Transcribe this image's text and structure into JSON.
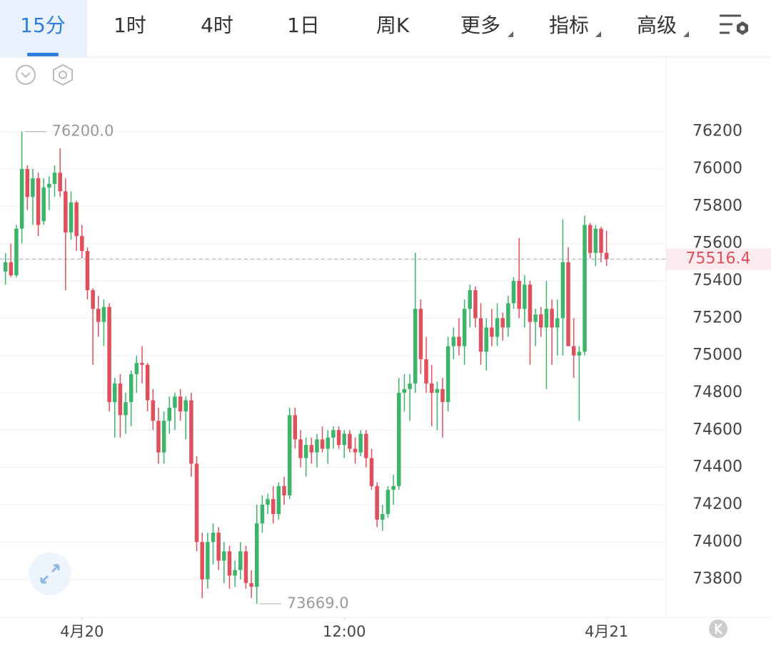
{
  "tabs": [
    "15分",
    "1时",
    "4时",
    "1日",
    "周K",
    "更多",
    "指标",
    "高级"
  ],
  "chart_data": {
    "type": "candlestick",
    "up_color": "#3cb56a",
    "down_color": "#e0505c",
    "open": [
      75450,
      75500,
      75430,
      75680,
      76000,
      75850,
      75950,
      75720,
      75900,
      75920,
      75980,
      75880,
      75660,
      75820,
      75640,
      75560,
      75350,
      75250,
      75180,
      75260,
      74750,
      74850,
      74680,
      74750,
      74900,
      74960,
      74950,
      74760,
      74650,
      74480,
      74650,
      74720,
      74780,
      74700,
      74760,
      74420,
      74000,
      73800,
      74000,
      74050,
      73900,
      73950,
      73820,
      73850,
      73950,
      73780,
      73760,
      74100,
      74200,
      74230,
      74150,
      74300,
      74250,
      74680,
      74550,
      74450,
      74520,
      74480,
      74550,
      74500,
      74560,
      74600,
      74520,
      74580,
      74500,
      74480,
      74580,
      74450,
      74300,
      74120,
      74150,
      74280,
      74300,
      74800,
      74820,
      74850,
      75250,
      74980,
      74850,
      74800,
      74820,
      74750,
      75050,
      75100,
      75050,
      75250,
      75350,
      75200,
      75020,
      75150,
      75100,
      75200,
      75150,
      75280,
      75400,
      75250,
      75380,
      75180,
      75220,
      75150,
      75250,
      75150,
      75200,
      75500,
      75050,
      75000,
      75020,
      75700,
      75550,
      75680,
      75550
    ],
    "high": [
      75550,
      75600,
      75700,
      76200,
      76020,
      76000,
      75980,
      75950,
      75960,
      76020,
      76110,
      75950,
      75880,
      75830,
      75700,
      75580,
      75360,
      75320,
      75300,
      75280,
      74880,
      74900,
      74800,
      74920,
      75000,
      75050,
      74960,
      74820,
      74720,
      74700,
      74780,
      74800,
      74820,
      74780,
      74800,
      74460,
      74050,
      74050,
      74100,
      74080,
      74000,
      73980,
      73900,
      74000,
      73980,
      73850,
      74200,
      74250,
      74260,
      74300,
      74320,
      74350,
      74720,
      74720,
      74600,
      74560,
      74560,
      74580,
      74620,
      74600,
      74620,
      74620,
      74600,
      74600,
      74560,
      74600,
      74600,
      74500,
      74320,
      74200,
      74300,
      74360,
      74880,
      74900,
      74900,
      75550,
      75300,
      75100,
      74950,
      74860,
      74880,
      75100,
      75150,
      75200,
      75300,
      75380,
      75370,
      75280,
      75200,
      75250,
      75280,
      75230,
      75320,
      75420,
      75630,
      75430,
      75400,
      75250,
      75260,
      75400,
      75300,
      75300,
      75730,
      75580,
      75200,
      75050,
      75750,
      75710,
      75700,
      75690,
      75670
    ],
    "low": [
      75380,
      75420,
      75420,
      75600,
      75780,
      75700,
      75640,
      75700,
      75780,
      75850,
      75850,
      75350,
      75620,
      75560,
      75520,
      75300,
      74950,
      75100,
      75050,
      74700,
      74560,
      74560,
      74580,
      74620,
      74800,
      74850,
      74700,
      74600,
      74420,
      74420,
      74580,
      74600,
      74650,
      74550,
      74350,
      73950,
      73700,
      73750,
      73880,
      73850,
      73780,
      73750,
      73760,
      73800,
      73750,
      73700,
      73669,
      74050,
      74150,
      74100,
      74120,
      74200,
      74230,
      74500,
      74400,
      74350,
      74420,
      74400,
      74480,
      74420,
      74500,
      74500,
      74450,
      74480,
      74420,
      74460,
      74400,
      74280,
      74080,
      74060,
      74130,
      74200,
      74280,
      74700,
      74650,
      74800,
      74900,
      74800,
      74620,
      74600,
      74560,
      74700,
      74980,
      75000,
      74950,
      75150,
      75150,
      74950,
      74920,
      75050,
      75050,
      75080,
      75100,
      75250,
      75200,
      75150,
      74950,
      75050,
      75100,
      74820,
      74950,
      75000,
      75000,
      75050,
      74880,
      74650,
      75000,
      75520,
      75480,
      75500,
      75480
    ],
    "close": [
      75500,
      75430,
      75680,
      76000,
      75850,
      75950,
      75700,
      75900,
      75920,
      75980,
      75880,
      75660,
      75820,
      75640,
      75560,
      75350,
      75250,
      75180,
      75260,
      74750,
      74850,
      74680,
      74750,
      74900,
      74960,
      74950,
      74760,
      74650,
      74480,
      74650,
      74720,
      74780,
      74700,
      74760,
      74420,
      74000,
      73800,
      74000,
      74050,
      73900,
      73950,
      73820,
      73850,
      73950,
      73780,
      73760,
      74100,
      74200,
      74230,
      74150,
      74300,
      74250,
      74680,
      74550,
      74450,
      74520,
      74480,
      74550,
      74500,
      74560,
      74600,
      74520,
      74580,
      74500,
      74480,
      74580,
      74450,
      74300,
      74120,
      74150,
      74280,
      74300,
      74800,
      74820,
      74850,
      75250,
      74980,
      74850,
      74800,
      74820,
      74750,
      75050,
      75100,
      75050,
      75250,
      75350,
      75200,
      75020,
      75150,
      75100,
      75200,
      75150,
      75280,
      75400,
      75250,
      75380,
      75180,
      75220,
      75150,
      75250,
      75150,
      75200,
      75500,
      75050,
      75000,
      75020,
      75700,
      75550,
      75680,
      75550,
      75516.4
    ],
    "xlim": [
      -1,
      120.5
    ],
    "xticks": [
      {
        "value": 14,
        "label": "4月20"
      },
      {
        "value": 62,
        "label": "12:00"
      },
      {
        "value": 110,
        "label": "4月21"
      }
    ],
    "ylim": [
      73600,
      76600
    ],
    "yticks": [
      73800,
      74000,
      74200,
      74400,
      74600,
      74800,
      75000,
      75200,
      75400,
      75600,
      75800,
      76000,
      76200
    ],
    "grid": true,
    "max_label": {
      "value": 76200,
      "label": "76200.0"
    },
    "min_label": {
      "value": 73669,
      "label": "73669.0"
    },
    "last_price": 75516.4
  }
}
